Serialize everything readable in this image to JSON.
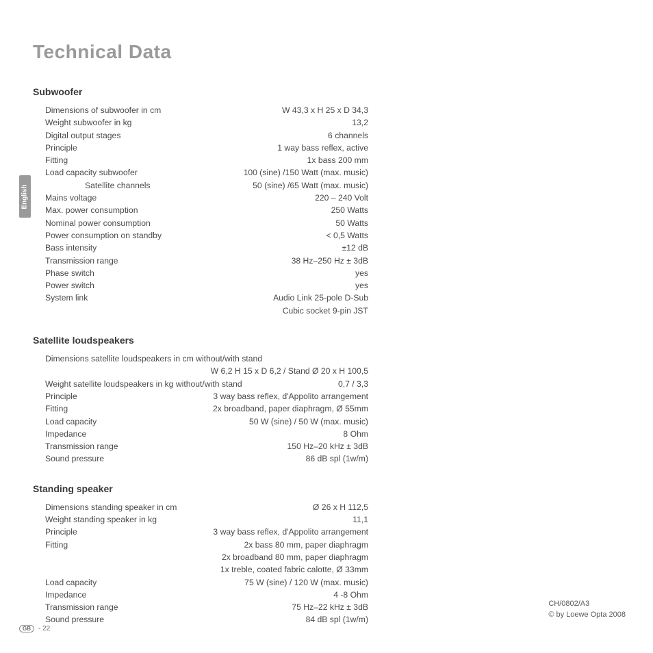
{
  "page_title": "Technical Data",
  "language_tab": "English",
  "sections": [
    {
      "heading": "Subwoofer",
      "rows": [
        {
          "label": "Dimensions of subwoofer in cm",
          "value": "W 43,3 x H 25 x D 34,3"
        },
        {
          "label": "Weight subwoofer in kg",
          "value": "13,2"
        },
        {
          "label": "Digital output stages",
          "value": "6 channels"
        },
        {
          "label": "Principle",
          "value": "1 way bass reflex,  active"
        },
        {
          "label": "Fitting",
          "value": "1x bass 200 mm"
        },
        {
          "label": "Load capacity subwoofer",
          "value": "100 (sine) /150 Watt (max. music)"
        },
        {
          "label": "Satellite channels",
          "value": "50 (sine) /65 Watt (max. music)",
          "indent": true
        },
        {
          "label": "Mains voltage",
          "value": "220 – 240 Volt"
        },
        {
          "label": "Max. power consumption",
          "value": "250 Watts"
        },
        {
          "label": "Nominal power consumption",
          "value": "50 Watts"
        },
        {
          "label": "Power consumption on standby",
          "value": "< 0,5 Watts"
        },
        {
          "label": "Bass intensity",
          "value": "±12 dB"
        },
        {
          "label": "Transmission range",
          "value": "38 Hz–250 Hz ± 3dB"
        },
        {
          "label": "Phase switch",
          "value": "yes"
        },
        {
          "label": "Power switch",
          "value": "yes"
        },
        {
          "label": "System link",
          "value": "Audio Link 25-pole D-Sub"
        },
        {
          "label": "",
          "value": "Cubic socket 9-pin  JST",
          "continuation": true
        }
      ]
    },
    {
      "heading": "Satellite loudspeakers",
      "rows": [
        {
          "label": "Dimensions satellite loudspeakers in cm without/with stand",
          "value": "",
          "full": true
        },
        {
          "label": "",
          "value": "W 6,2 H 15 x D 6,2 / Stand Ø 20 x H 100,5",
          "continuation": true
        },
        {
          "label": "Weight satellite loudspeakers in kg without/with stand",
          "value": "0,7 / 3,3"
        },
        {
          "label": "Principle",
          "value": "3 way bass reflex, d'Appolito arrangement"
        },
        {
          "label": "Fitting",
          "value": "2x broadband, paper diaphragm, Ø 55mm"
        },
        {
          "label": "Load capacity",
          "value": "50 W (sine) / 50 W (max. music)"
        },
        {
          "label": "Impedance",
          "value": "8 Ohm"
        },
        {
          "label": "Transmission range",
          "value": "150 Hz–20 kHz ± 3dB"
        },
        {
          "label": "Sound pressure",
          "value": "86 dB spl (1w/m)"
        }
      ]
    },
    {
      "heading": "Standing speaker",
      "rows": [
        {
          "label": "Dimensions standing speaker in cm",
          "value": "Ø 26 x H 112,5"
        },
        {
          "label": "Weight standing speaker in kg",
          "value": "11,1"
        },
        {
          "label": "Principle",
          "value": "3 way bass reflex, d'Appolito arrangement"
        },
        {
          "label": "Fitting",
          "value": "2x bass 80 mm,  paper diaphragm"
        },
        {
          "label": "",
          "value": "2x broadband 80 mm,  paper diaphragm",
          "continuation": true
        },
        {
          "label": "",
          "value": "1x treble, coated fabric calotte,  Ø 33mm",
          "continuation": true
        },
        {
          "label": "Load capacity",
          "value": "75 W (sine) / 120 W (max. music)"
        },
        {
          "label": "Impedance",
          "value": "4 -8 Ohm"
        },
        {
          "label": "Transmission range",
          "value": "75 Hz–22 kHz ± 3dB"
        },
        {
          "label": "Sound pressure",
          "value": "84 dB spl (1w/m)"
        }
      ]
    }
  ],
  "footer": {
    "page_badge": "GB",
    "page_number": "- 22",
    "doc_code": "CH/0802/A3",
    "copyright": "© by Loewe Opta 2008"
  }
}
